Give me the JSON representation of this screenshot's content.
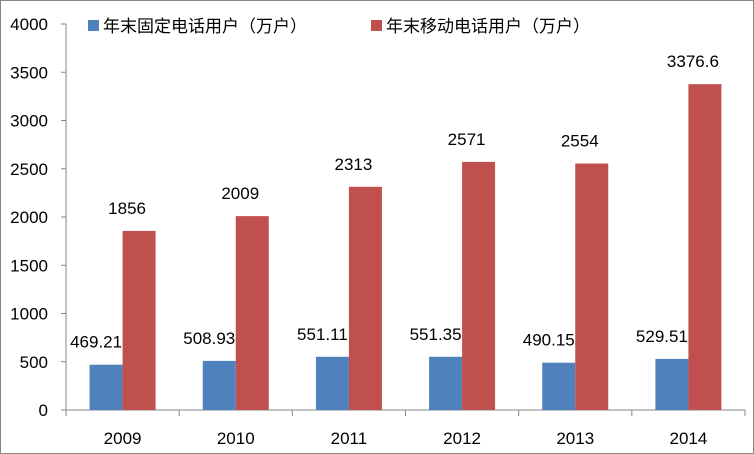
{
  "chart_data": {
    "type": "bar",
    "categories": [
      "2009",
      "2010",
      "2011",
      "2012",
      "2013",
      "2014"
    ],
    "series": [
      {
        "name": "年末固定电话用户（万户）",
        "values": [
          469.21,
          508.93,
          551.11,
          551.35,
          490.15,
          529.51
        ],
        "labels": [
          "469.21",
          "508.93",
          "551.11",
          "551.35",
          "490.15",
          "529.51"
        ],
        "color": "#4F81BD"
      },
      {
        "name": "年末移动电话用户（万户）",
        "values": [
          1856,
          2009,
          2313,
          2571,
          2554,
          3376.6
        ],
        "labels": [
          "1856",
          "2009",
          "2313",
          "2571",
          "2554",
          "3376.6"
        ],
        "color": "#C0504D"
      }
    ],
    "ylim": [
      0,
      4000
    ],
    "yticks": [
      0,
      500,
      1000,
      1500,
      2000,
      2500,
      3000,
      3500,
      4000
    ],
    "grid": false,
    "legend": "top"
  }
}
